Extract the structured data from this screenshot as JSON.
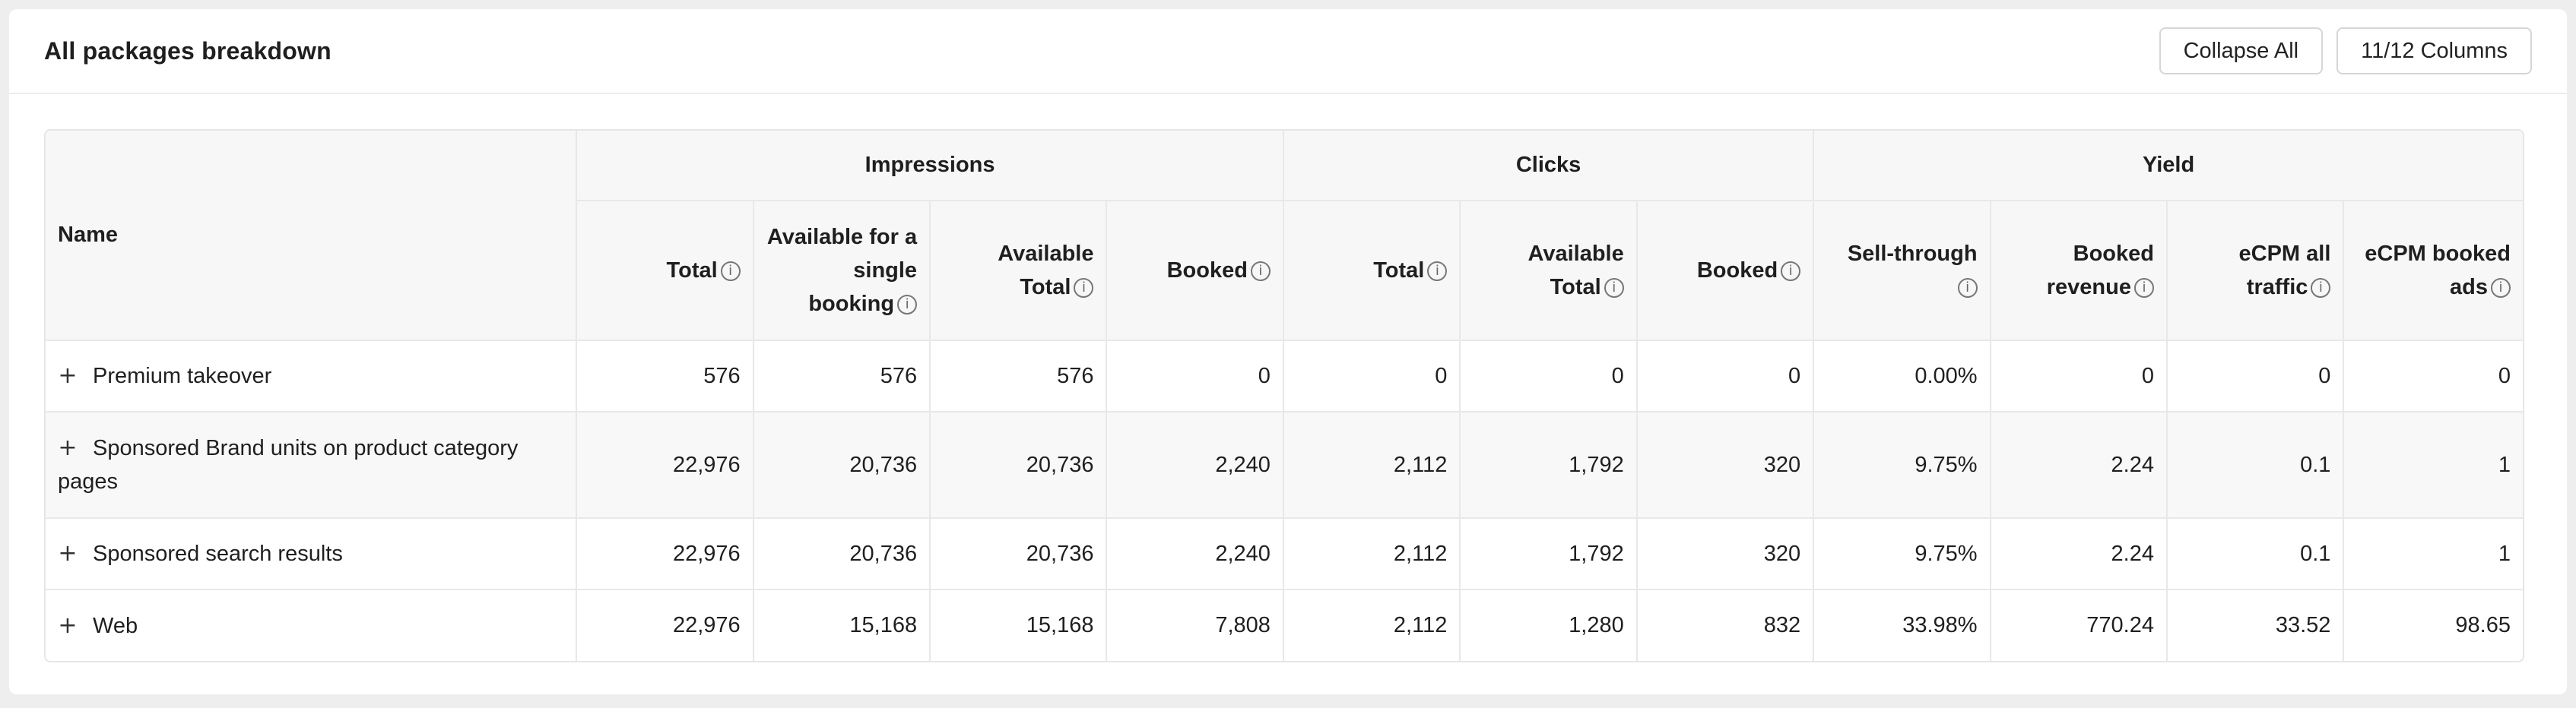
{
  "header": {
    "title": "All packages breakdown",
    "collapse_label": "Collapse All",
    "columns_label": "11/12 Columns"
  },
  "table": {
    "name_header": "Name",
    "groups": [
      "Impressions",
      "Clicks",
      "Yield"
    ],
    "columns": [
      "Total",
      "Available for a single booking",
      "Available Total",
      "Booked",
      "Total",
      "Available Total",
      "Booked",
      "Sell-through",
      "Booked revenue",
      "eCPM all traffic",
      "eCPM booked ads"
    ],
    "rows": [
      {
        "name": "Premium takeover",
        "cells": [
          "576",
          "576",
          "576",
          "0",
          "0",
          "0",
          "0",
          "0.00%",
          "0",
          "0",
          "0"
        ]
      },
      {
        "name": "Sponsored Brand units on product category pages",
        "cells": [
          "22,976",
          "20,736",
          "20,736",
          "2,240",
          "2,112",
          "1,792",
          "320",
          "9.75%",
          "2.24",
          "0.1",
          "1"
        ]
      },
      {
        "name": "Sponsored search results",
        "cells": [
          "22,976",
          "20,736",
          "20,736",
          "2,240",
          "2,112",
          "1,792",
          "320",
          "9.75%",
          "2.24",
          "0.1",
          "1"
        ]
      },
      {
        "name": "Web",
        "cells": [
          "22,976",
          "15,168",
          "15,168",
          "7,808",
          "2,112",
          "1,280",
          "832",
          "33.98%",
          "770.24",
          "33.52",
          "98.65"
        ]
      }
    ]
  },
  "icons": {
    "info": "info-circle-icon",
    "expand": "plus-icon"
  }
}
